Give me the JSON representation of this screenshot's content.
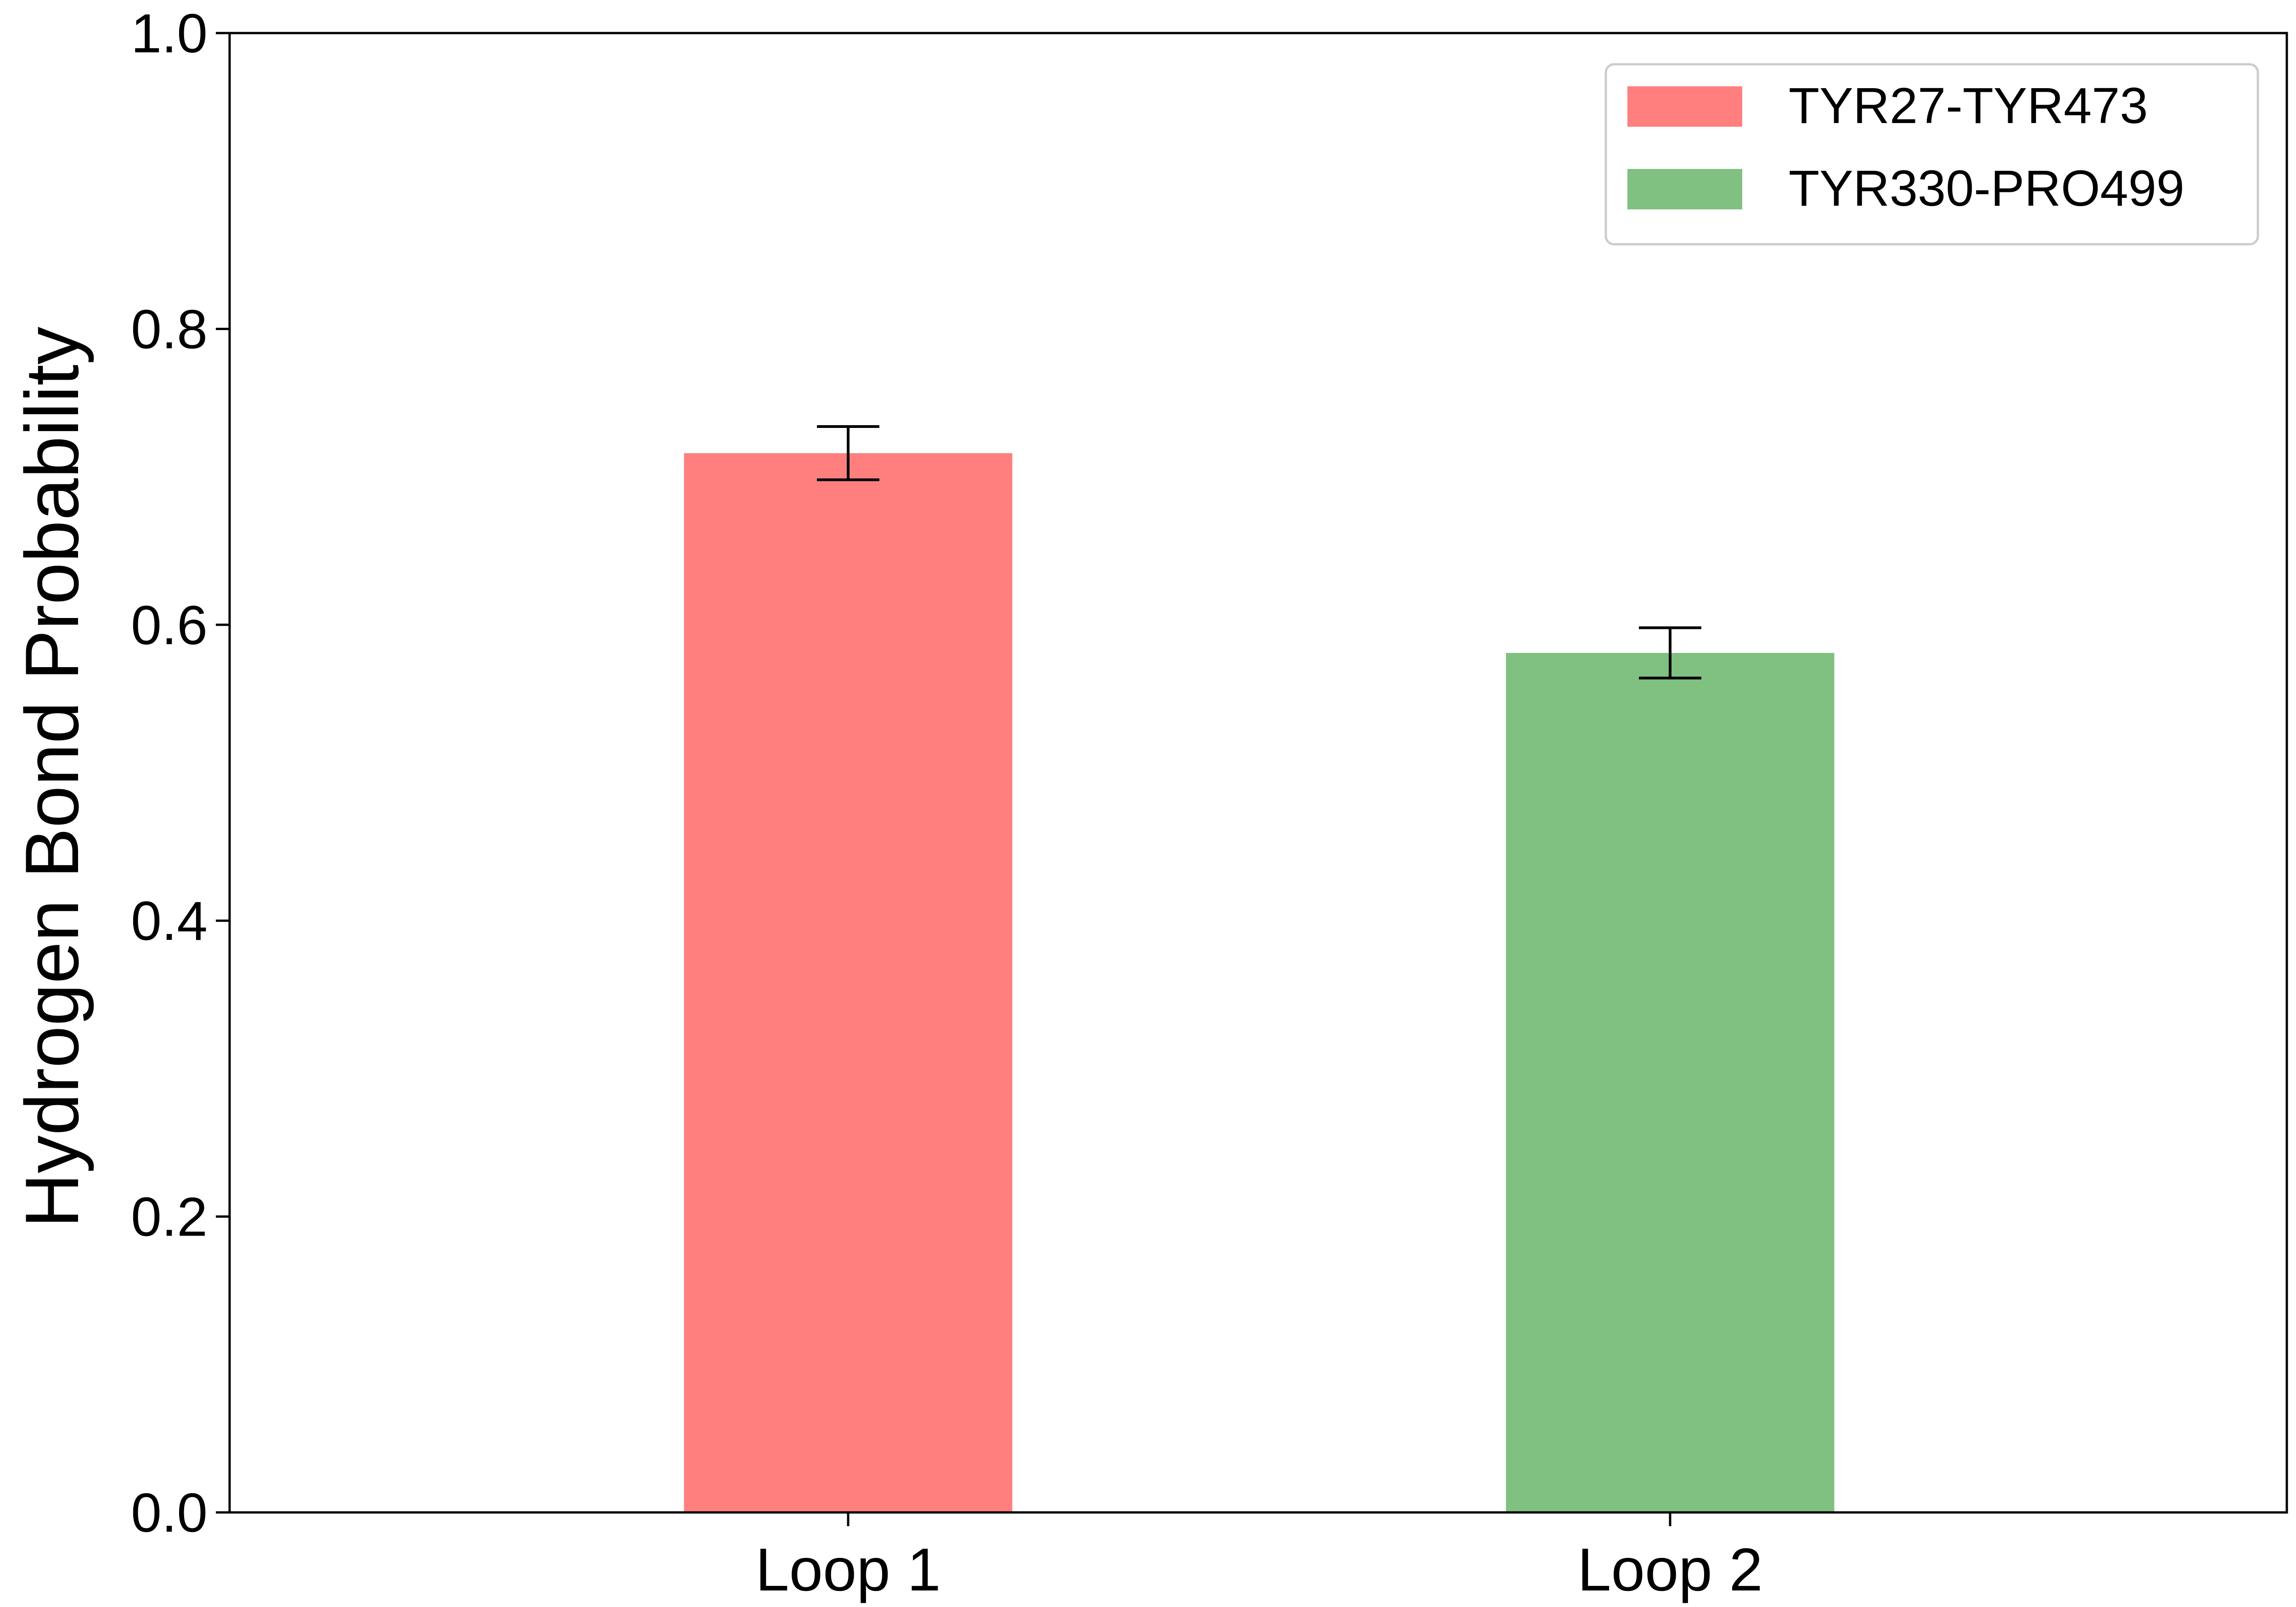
{
  "chart_data": {
    "type": "bar",
    "title": "",
    "xlabel": "",
    "ylabel": "Hydrogen Bond Probability",
    "categories": [
      "Loop 1",
      "Loop 2"
    ],
    "ylim": [
      0,
      1.0
    ],
    "yticks": [
      "0.0",
      "0.2",
      "0.4",
      "0.6",
      "0.8",
      "1.0"
    ],
    "grid": false,
    "legend_position": "top-right",
    "series": [
      {
        "name": "TYR27-TYR473",
        "values": [
          0.716,
          null
        ],
        "errors": [
          0.018,
          null
        ],
        "color": "#ff7f7f"
      },
      {
        "name": "TYR330-PRO499",
        "values": [
          null,
          0.581
        ],
        "errors": [
          null,
          0.017
        ],
        "color": "#80c080"
      }
    ]
  }
}
